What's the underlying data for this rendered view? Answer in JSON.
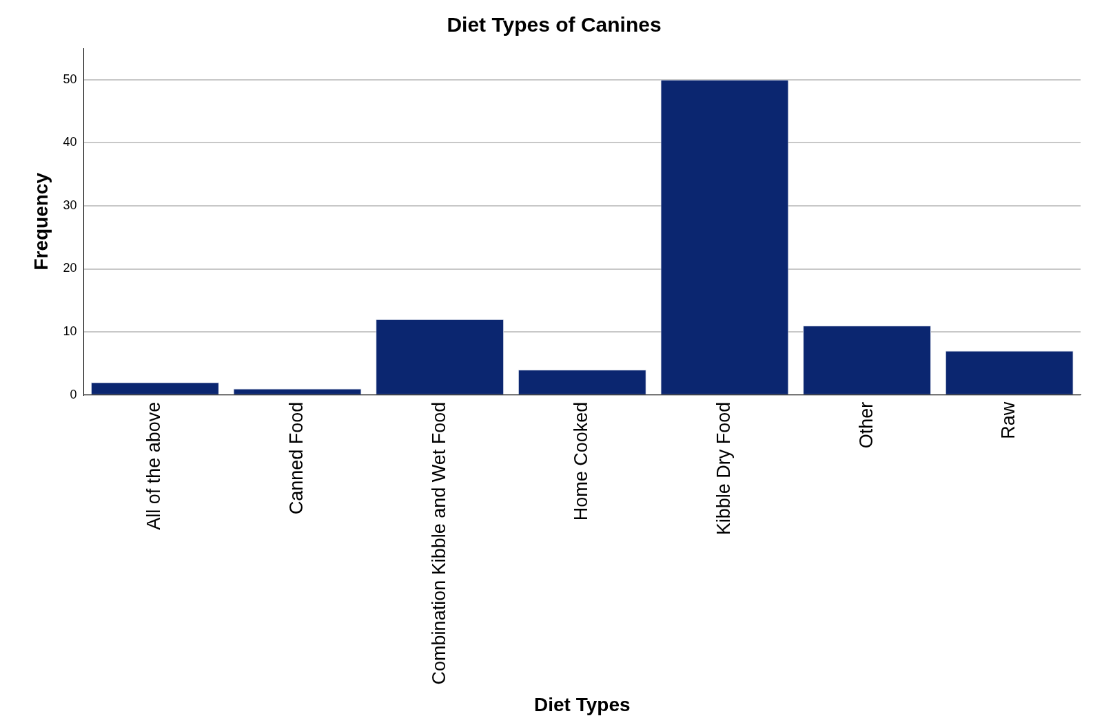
{
  "chart_data": {
    "type": "bar",
    "title": "Diet Types of Canines",
    "xlabel": "Diet Types",
    "ylabel": "Frequency",
    "categories": [
      "All of the above",
      "Canned Food",
      "Combination Kibble and Wet Food",
      "Home Cooked",
      "Kibble Dry Food",
      "Other",
      "Raw"
    ],
    "values": [
      2,
      1,
      12,
      4,
      50,
      11,
      7
    ],
    "color": "#0b2670",
    "ylim": [
      0,
      55
    ],
    "yticks": [
      0,
      10,
      20,
      30,
      40,
      50
    ],
    "grid": "y",
    "legend": false
  }
}
